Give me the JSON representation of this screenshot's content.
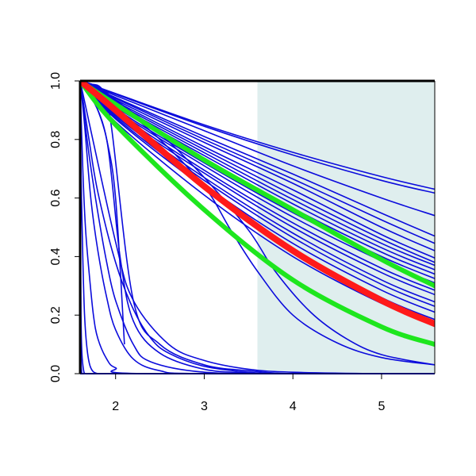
{
  "chart_data": {
    "type": "line",
    "xlim": [
      1.6,
      5.6
    ],
    "ylim": [
      0.0,
      1.0
    ],
    "x_ticks": [
      2,
      3,
      4,
      5
    ],
    "x_tick_labels": [
      "2",
      "3",
      "4",
      "5"
    ],
    "y_ticks": [
      0.0,
      0.2,
      0.4,
      0.6,
      0.8,
      1.0
    ],
    "y_tick_labels": [
      "0.0",
      "0.2",
      "0.4",
      "0.6",
      "0.8",
      "1.0"
    ],
    "grid": false,
    "shaded_region": {
      "x": [
        3.6,
        5.6
      ],
      "color": "#dfeeee"
    },
    "colors": {
      "series": "#0b0bdc",
      "mean": "#ff1a1a",
      "band": "#1ee61e",
      "axis": "#000000"
    },
    "series": [
      {
        "x": [
          1.6,
          2.0,
          3.0,
          4.0,
          5.0,
          5.6
        ],
        "y": [
          1.0,
          0.957,
          0.85,
          0.756,
          0.673,
          0.63
        ]
      },
      {
        "x": [
          1.6,
          2.0,
          3.0,
          4.0,
          5.0,
          5.6
        ],
        "y": [
          1.0,
          0.955,
          0.845,
          0.747,
          0.66,
          0.617
        ]
      },
      {
        "x": [
          1.6,
          2.0,
          3.0,
          4.0,
          5.0,
          5.6
        ],
        "y": [
          1.0,
          0.95,
          0.83,
          0.71,
          0.6,
          0.54
        ]
      },
      {
        "x": [
          1.6,
          2.0,
          3.0,
          4.0,
          5.0,
          5.6
        ],
        "y": [
          1.0,
          0.943,
          0.81,
          0.682,
          0.548,
          0.47
        ]
      },
      {
        "x": [
          1.6,
          2.0,
          3.0,
          4.0,
          5.0,
          5.6
        ],
        "y": [
          1.0,
          0.94,
          0.8,
          0.665,
          0.525,
          0.445
        ]
      },
      {
        "x": [
          1.6,
          2.0,
          3.0,
          4.0,
          5.0,
          5.6
        ],
        "y": [
          1.0,
          0.935,
          0.79,
          0.65,
          0.5,
          0.42
        ]
      },
      {
        "x": [
          1.6,
          2.0,
          3.0,
          4.0,
          5.0,
          5.6
        ],
        "y": [
          1.0,
          0.93,
          0.775,
          0.628,
          0.475,
          0.395
        ]
      },
      {
        "x": [
          1.6,
          2.0,
          3.0,
          4.0,
          5.0,
          5.6
        ],
        "y": [
          1.0,
          0.925,
          0.765,
          0.61,
          0.46,
          0.38
        ]
      },
      {
        "x": [
          1.6,
          2.0,
          3.0,
          4.0,
          5.0,
          5.6
        ],
        "y": [
          1.0,
          0.92,
          0.755,
          0.595,
          0.445,
          0.37
        ]
      },
      {
        "x": [
          1.6,
          2.0,
          3.0,
          4.0,
          5.0,
          5.6
        ],
        "y": [
          1.0,
          0.915,
          0.745,
          0.58,
          0.43,
          0.355
        ]
      },
      {
        "x": [
          1.6,
          2.0,
          3.0,
          4.0,
          5.0,
          5.6
        ],
        "y": [
          1.0,
          0.91,
          0.735,
          0.565,
          0.415,
          0.34
        ]
      },
      {
        "x": [
          1.6,
          2.0,
          3.0,
          4.0,
          5.0,
          5.6
        ],
        "y": [
          1.0,
          0.905,
          0.72,
          0.55,
          0.4,
          0.325
        ]
      },
      {
        "x": [
          1.6,
          2.0,
          3.0,
          4.0,
          5.0,
          5.6
        ],
        "y": [
          1.0,
          0.9,
          0.71,
          0.535,
          0.385,
          0.31
        ]
      },
      {
        "x": [
          1.6,
          2.0,
          3.0,
          4.0,
          5.0,
          5.6
        ],
        "y": [
          1.0,
          0.895,
          0.695,
          0.515,
          0.36,
          0.285
        ]
      },
      {
        "x": [
          1.6,
          2.0,
          3.0,
          4.0,
          5.0,
          5.6
        ],
        "y": [
          1.0,
          0.89,
          0.685,
          0.5,
          0.345,
          0.27
        ]
      },
      {
        "x": [
          1.6,
          2.0,
          3.0,
          4.0,
          5.0,
          5.6
        ],
        "y": [
          1.0,
          0.885,
          0.67,
          0.48,
          0.32,
          0.245
        ]
      },
      {
        "x": [
          1.6,
          2.0,
          3.0,
          4.0,
          5.0,
          5.6
        ],
        "y": [
          1.0,
          0.88,
          0.66,
          0.465,
          0.305,
          0.23
        ]
      },
      {
        "x": [
          1.6,
          2.0,
          3.0,
          4.0,
          5.0,
          5.6
        ],
        "y": [
          1.0,
          0.875,
          0.645,
          0.445,
          0.285,
          0.21
        ]
      },
      {
        "x": [
          1.6,
          2.0,
          3.0,
          4.0,
          5.0,
          5.6
        ],
        "y": [
          1.0,
          0.87,
          0.635,
          0.425,
          0.26,
          0.185
        ]
      },
      {
        "x": [
          1.6,
          2.0,
          3.0,
          4.0,
          5.0,
          5.6
        ],
        "y": [
          1.0,
          0.86,
          0.61,
          0.4,
          0.24,
          0.17
        ]
      },
      {
        "x": [
          1.6,
          1.8,
          2.0,
          2.5,
          3.0,
          3.3,
          3.6,
          4.0,
          4.5,
          5.0,
          5.6
        ],
        "y": [
          1.0,
          0.98,
          0.93,
          0.8,
          0.64,
          0.49,
          0.35,
          0.2,
          0.105,
          0.055,
          0.03
        ]
      },
      {
        "x": [
          1.6,
          1.8,
          2.0,
          2.5,
          3.0,
          3.5,
          3.8,
          4.2,
          4.6,
          5.0,
          5.6
        ],
        "y": [
          1.0,
          0.98,
          0.935,
          0.82,
          0.67,
          0.49,
          0.35,
          0.21,
          0.12,
          0.065,
          0.03
        ]
      },
      {
        "x": [
          1.6,
          1.63,
          1.7,
          1.8,
          1.9,
          2.0,
          2.1
        ],
        "y": [
          1.0,
          1.0,
          0.97,
          0.9,
          0.8,
          0.6,
          0.1
        ]
      },
      {
        "x": [
          1.6,
          1.7,
          1.85,
          1.95,
          2.2,
          2.5,
          3.0,
          3.5,
          4.0,
          5.0,
          5.6
        ],
        "y": [
          1.0,
          0.99,
          0.97,
          0.85,
          0.25,
          0.1,
          0.03,
          0.01,
          0.0,
          0.0,
          0.0
        ]
      },
      {
        "x": [
          1.6,
          1.7,
          1.9,
          2.05,
          2.2,
          2.5,
          3.0,
          3.5,
          4.0,
          5.6
        ],
        "y": [
          1.0,
          0.96,
          0.8,
          0.4,
          0.18,
          0.07,
          0.015,
          0.003,
          0.0,
          0.0
        ]
      },
      {
        "x": [
          1.6,
          1.7,
          1.8,
          2.0,
          2.2,
          2.4,
          2.6,
          3.0,
          3.5,
          4.0,
          5.6
        ],
        "y": [
          1.0,
          0.8,
          0.62,
          0.38,
          0.22,
          0.12,
          0.07,
          0.025,
          0.005,
          0.0,
          0.0
        ]
      },
      {
        "x": [
          1.6,
          1.7,
          1.8,
          1.9,
          2.0,
          2.2,
          2.4,
          3.0,
          4.0,
          5.6
        ],
        "y": [
          1.0,
          0.75,
          0.55,
          0.38,
          0.25,
          0.1,
          0.04,
          0.005,
          0.0,
          0.0
        ]
      },
      {
        "x": [
          1.6,
          1.65,
          1.72,
          1.8,
          1.9,
          2.0,
          2.2,
          2.5,
          3.0,
          5.6
        ],
        "y": [
          1.0,
          0.85,
          0.6,
          0.42,
          0.26,
          0.15,
          0.05,
          0.01,
          0.0,
          0.0
        ]
      },
      {
        "x": [
          1.6,
          1.63,
          1.66,
          1.7,
          1.75,
          1.8,
          1.9,
          2.0,
          2.3,
          5.6
        ],
        "y": [
          1.0,
          0.7,
          0.5,
          0.35,
          0.2,
          0.12,
          0.05,
          0.02,
          0.0,
          0.0
        ]
      },
      {
        "x": [
          1.6,
          1.61,
          1.63,
          1.65,
          1.68,
          1.72,
          1.8,
          2.0,
          5.6
        ],
        "y": [
          1.0,
          0.7,
          0.4,
          0.2,
          0.08,
          0.02,
          0.0,
          0.0,
          0.0
        ]
      },
      {
        "x": [
          1.6,
          1.605,
          1.61,
          1.62,
          1.64,
          1.66,
          1.7,
          5.6
        ],
        "y": [
          1.0,
          0.5,
          0.2,
          0.07,
          0.01,
          0.0,
          0.0,
          0.0
        ]
      },
      {
        "x": [
          1.6,
          1.601,
          1.604,
          1.61,
          1.62,
          1.65,
          5.6
        ],
        "y": [
          1.0,
          0.6,
          0.2,
          0.05,
          0.0,
          0.0,
          0.0
        ]
      },
      {
        "x": [
          1.6,
          2.0,
          2.2,
          2.6,
          3.0,
          3.5,
          4.0,
          5.0,
          5.6
        ],
        "y": [
          1.0,
          0.45,
          0.25,
          0.1,
          0.045,
          0.015,
          0.005,
          0.0,
          0.0
        ]
      }
    ],
    "band_series": [
      {
        "x": [
          1.6,
          2.0,
          3.0,
          4.0,
          5.0,
          5.6
        ],
        "y": [
          1.0,
          0.92,
          0.73,
          0.56,
          0.39,
          0.3
        ]
      },
      {
        "x": [
          1.6,
          2.0,
          3.0,
          4.0,
          5.0,
          5.6
        ],
        "y": [
          1.0,
          0.85,
          0.56,
          0.32,
          0.16,
          0.1
        ]
      }
    ],
    "mean_series": {
      "x": [
        1.6,
        2.0,
        3.0,
        4.0,
        5.0,
        5.6
      ],
      "y": [
        1.0,
        0.9,
        0.64,
        0.42,
        0.25,
        0.17
      ]
    }
  }
}
